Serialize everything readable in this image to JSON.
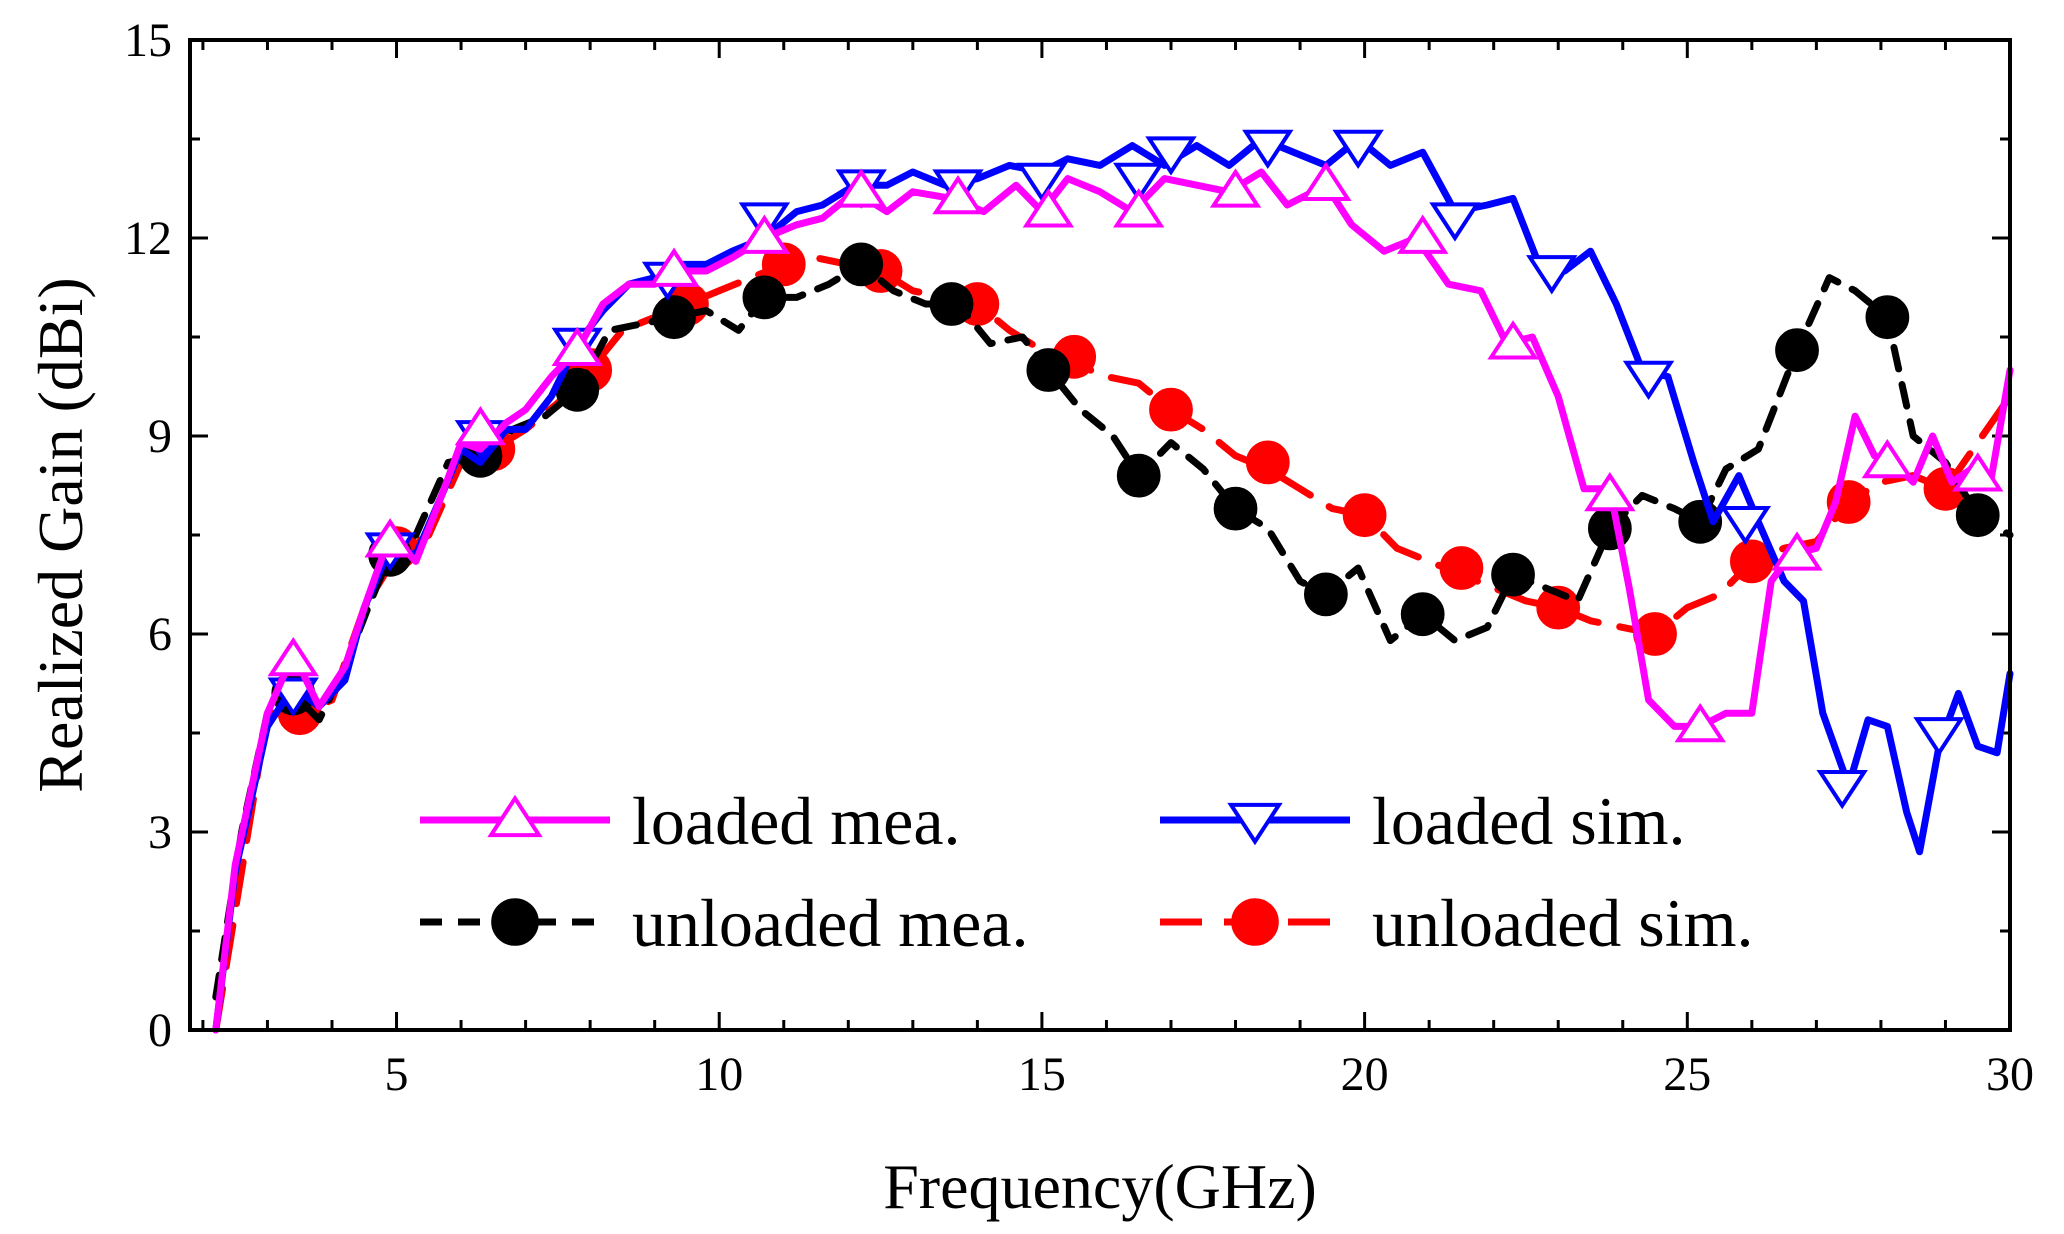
{
  "chart_data": {
    "type": "line",
    "title": "",
    "xlabel": "Frequency(GHz)",
    "ylabel": "Realized Gain (dBi)",
    "xlim": [
      1.8,
      30
    ],
    "ylim": [
      0,
      15
    ],
    "xticks": [
      5,
      10,
      15,
      20,
      25,
      30
    ],
    "yticks": [
      0,
      3,
      6,
      9,
      12,
      15
    ],
    "grid": false,
    "legend_position": "bottom-center",
    "series": [
      {
        "name": "loaded mea.",
        "color": "#FF00FF",
        "line_style": "solid",
        "marker": "triangle-up-open",
        "x": [
          2.2,
          2.5,
          3.0,
          3.4,
          3.8,
          4.2,
          4.5,
          4.9,
          5.3,
          5.7,
          6.0,
          6.3,
          6.7,
          7.0,
          7.4,
          7.8,
          8.2,
          8.6,
          9.0,
          9.4,
          9.8,
          10.2,
          10.7,
          11.2,
          11.6,
          12.1,
          12.6,
          13.0,
          13.6,
          14.1,
          14.6,
          15.0,
          15.4,
          15.9,
          16.4,
          16.9,
          17.4,
          17.9,
          18.4,
          18.8,
          19.4,
          19.8,
          20.3,
          20.8,
          21.3,
          21.8,
          22.2,
          22.6,
          23.0,
          23.4,
          23.8,
          24.1,
          24.4,
          24.8,
          25.2,
          25.6,
          26.0,
          26.3,
          26.6,
          27.0,
          27.3,
          27.6,
          27.9,
          28.2,
          28.5,
          28.8,
          29.1,
          29.4,
          29.7,
          30.0
        ],
        "y": [
          0.0,
          2.5,
          4.8,
          5.7,
          4.9,
          5.5,
          6.4,
          7.5,
          7.1,
          8.1,
          8.9,
          8.8,
          9.2,
          9.4,
          9.9,
          10.3,
          11.0,
          11.3,
          11.3,
          11.5,
          11.5,
          11.7,
          12.0,
          12.2,
          12.3,
          12.7,
          12.4,
          12.7,
          12.6,
          12.4,
          12.8,
          12.4,
          12.9,
          12.7,
          12.4,
          12.9,
          12.8,
          12.7,
          13.0,
          12.5,
          12.8,
          12.2,
          11.8,
          12.0,
          11.3,
          11.2,
          10.4,
          10.5,
          9.6,
          8.2,
          8.2,
          6.7,
          5.0,
          4.6,
          4.6,
          4.8,
          4.8,
          6.8,
          7.2,
          7.3,
          8.0,
          9.3,
          8.7,
          8.6,
          8.3,
          9.0,
          8.3,
          8.5,
          8.3,
          10.0
        ],
        "markers_x": [
          3.4,
          4.9,
          6.3,
          7.8,
          9.3,
          10.7,
          12.2,
          13.7,
          15.1,
          16.5,
          18.0,
          19.4,
          20.9,
          22.3,
          23.8,
          25.2,
          26.7,
          28.1,
          29.5
        ],
        "markers_y": [
          5.6,
          7.4,
          9.1,
          10.3,
          11.5,
          12.0,
          12.7,
          12.6,
          12.4,
          12.4,
          12.7,
          12.8,
          12.0,
          10.4,
          8.1,
          4.6,
          7.2,
          8.6,
          8.4
        ]
      },
      {
        "name": "loaded sim.",
        "color": "#0000FF",
        "line_style": "solid",
        "marker": "triangle-down-open",
        "x": [
          2.2,
          2.5,
          3.0,
          3.4,
          3.8,
          4.2,
          4.5,
          4.9,
          5.3,
          5.7,
          6.0,
          6.3,
          6.7,
          7.0,
          7.4,
          7.8,
          8.2,
          8.6,
          9.0,
          9.4,
          9.8,
          10.2,
          10.7,
          11.2,
          11.6,
          12.1,
          12.6,
          13.0,
          13.5,
          14.0,
          14.5,
          15.0,
          15.4,
          15.9,
          16.4,
          16.9,
          17.4,
          17.9,
          18.4,
          18.9,
          19.4,
          19.9,
          20.4,
          20.9,
          21.4,
          21.9,
          22.3,
          22.7,
          23.1,
          23.5,
          23.9,
          24.3,
          24.7,
          25.1,
          25.4,
          25.8,
          26.1,
          26.5,
          26.8,
          27.1,
          27.5,
          27.8,
          28.1,
          28.4,
          28.6,
          28.9,
          29.2,
          29.5,
          29.8,
          30.0
        ],
        "y": [
          0.0,
          2.4,
          4.6,
          5.2,
          4.9,
          5.3,
          6.4,
          7.3,
          7.2,
          8.1,
          8.8,
          8.6,
          9.1,
          9.1,
          9.6,
          10.4,
          10.9,
          11.3,
          11.4,
          11.6,
          11.6,
          11.8,
          12.0,
          12.4,
          12.5,
          12.8,
          12.8,
          13.0,
          12.8,
          12.9,
          13.1,
          13.0,
          13.2,
          13.1,
          13.4,
          13.1,
          13.4,
          13.1,
          13.5,
          13.3,
          13.1,
          13.5,
          13.1,
          13.3,
          12.4,
          12.5,
          12.6,
          11.6,
          11.5,
          11.8,
          11.0,
          10.0,
          9.9,
          8.6,
          7.7,
          8.4,
          7.7,
          6.8,
          6.5,
          4.8,
          3.7,
          4.7,
          4.6,
          3.3,
          2.7,
          4.3,
          5.1,
          4.3,
          4.2,
          5.4
        ],
        "markers_x": [
          3.4,
          4.9,
          6.3,
          7.8,
          9.2,
          10.7,
          12.2,
          13.7,
          15.0,
          16.5,
          17.0,
          18.5,
          19.9,
          21.4,
          22.9,
          24.4,
          25.9,
          27.4,
          28.9
        ],
        "markers_y": [
          5.1,
          7.3,
          9.0,
          10.4,
          11.4,
          12.3,
          12.8,
          12.8,
          12.9,
          12.9,
          13.3,
          13.4,
          13.4,
          12.3,
          11.5,
          9.9,
          7.7,
          3.7,
          4.5
        ]
      },
      {
        "name": "unloaded mea.",
        "color": "#000000",
        "line_style": "dashed",
        "marker": "circle-filled",
        "x": [
          2.2,
          2.6,
          3.0,
          3.4,
          3.8,
          4.2,
          4.6,
          4.9,
          5.3,
          5.8,
          6.3,
          6.8,
          7.3,
          7.8,
          8.3,
          8.8,
          9.3,
          9.8,
          10.3,
          10.7,
          11.2,
          11.7,
          12.2,
          12.7,
          13.2,
          13.7,
          14.2,
          14.7,
          15.1,
          15.6,
          16.1,
          16.5,
          17.0,
          17.5,
          18.0,
          18.5,
          19.0,
          19.4,
          19.9,
          20.4,
          20.9,
          21.4,
          21.9,
          22.3,
          22.8,
          23.3,
          23.8,
          24.3,
          24.8,
          25.2,
          25.6,
          26.1,
          26.7,
          27.2,
          27.6,
          28.1,
          28.5,
          29.0,
          29.5,
          30.0
        ],
        "y": [
          0.5,
          3.0,
          4.8,
          5.1,
          4.7,
          5.5,
          6.5,
          7.2,
          7.5,
          8.6,
          8.7,
          9.1,
          9.3,
          9.7,
          10.6,
          10.7,
          10.8,
          10.9,
          10.6,
          11.1,
          11.1,
          11.3,
          11.6,
          11.2,
          11.0,
          11.0,
          10.4,
          10.5,
          10.0,
          9.4,
          9.0,
          8.4,
          8.9,
          8.5,
          7.9,
          7.6,
          6.8,
          6.6,
          7.0,
          5.9,
          6.3,
          5.9,
          6.1,
          6.9,
          6.7,
          6.5,
          7.6,
          8.1,
          7.9,
          7.7,
          8.5,
          8.8,
          10.3,
          11.4,
          11.2,
          10.8,
          9.0,
          8.6,
          7.8,
          7.5
        ],
        "markers_x": [
          3.4,
          4.9,
          6.3,
          7.8,
          9.3,
          10.7,
          12.2,
          13.6,
          15.1,
          16.5,
          18.0,
          19.4,
          20.9,
          22.3,
          23.8,
          25.2,
          26.7,
          28.1,
          29.5
        ],
        "markers_y": [
          5.1,
          7.2,
          8.7,
          9.7,
          10.8,
          11.1,
          11.6,
          11.0,
          10.0,
          8.4,
          7.9,
          6.6,
          6.3,
          6.9,
          7.6,
          7.7,
          10.3,
          10.8,
          7.8
        ]
      },
      {
        "name": "unloaded sim.",
        "color": "#FF0000",
        "line_style": "dashed",
        "marker": "circle-filled",
        "x": [
          2.2,
          2.6,
          3.0,
          3.5,
          4.0,
          4.5,
          5.0,
          5.5,
          6.0,
          6.5,
          7.0,
          7.5,
          8.0,
          8.5,
          9.0,
          9.5,
          10.0,
          10.5,
          11.0,
          11.5,
          12.0,
          12.5,
          13.0,
          13.5,
          14.0,
          14.5,
          15.0,
          15.5,
          16.0,
          16.5,
          17.0,
          17.5,
          18.0,
          18.5,
          19.0,
          19.5,
          20.0,
          20.5,
          21.0,
          21.5,
          22.0,
          22.5,
          23.0,
          23.5,
          24.0,
          24.5,
          25.0,
          25.5,
          26.0,
          26.5,
          27.0,
          27.5,
          28.0,
          28.5,
          29.0,
          29.5,
          30.0
        ],
        "y": [
          0.0,
          2.4,
          4.8,
          4.8,
          5.0,
          6.4,
          7.2,
          7.5,
          8.6,
          8.8,
          9.1,
          9.5,
          10.0,
          10.6,
          10.8,
          11.0,
          11.2,
          11.4,
          11.6,
          11.7,
          11.6,
          11.5,
          11.2,
          11.1,
          11.0,
          10.6,
          10.3,
          10.1,
          9.9,
          9.8,
          9.4,
          9.1,
          8.7,
          8.5,
          8.2,
          7.9,
          7.8,
          7.3,
          7.1,
          6.9,
          6.7,
          6.5,
          6.4,
          6.2,
          6.1,
          6.0,
          6.4,
          6.6,
          7.1,
          7.3,
          7.4,
          8.0,
          8.3,
          8.4,
          8.2,
          8.9,
          9.6
        ],
        "markers_x": [
          3.5,
          5.0,
          6.5,
          8.0,
          9.5,
          11.0,
          12.5,
          14.0,
          15.5,
          17.0,
          18.5,
          20.0,
          21.5,
          23.0,
          24.5,
          26.0,
          27.5,
          29.0
        ],
        "markers_y": [
          4.8,
          7.3,
          8.8,
          10.0,
          11.0,
          11.6,
          11.5,
          11.0,
          10.2,
          9.4,
          8.6,
          7.8,
          7.0,
          6.4,
          6.0,
          7.1,
          8.0,
          8.2
        ]
      }
    ]
  }
}
